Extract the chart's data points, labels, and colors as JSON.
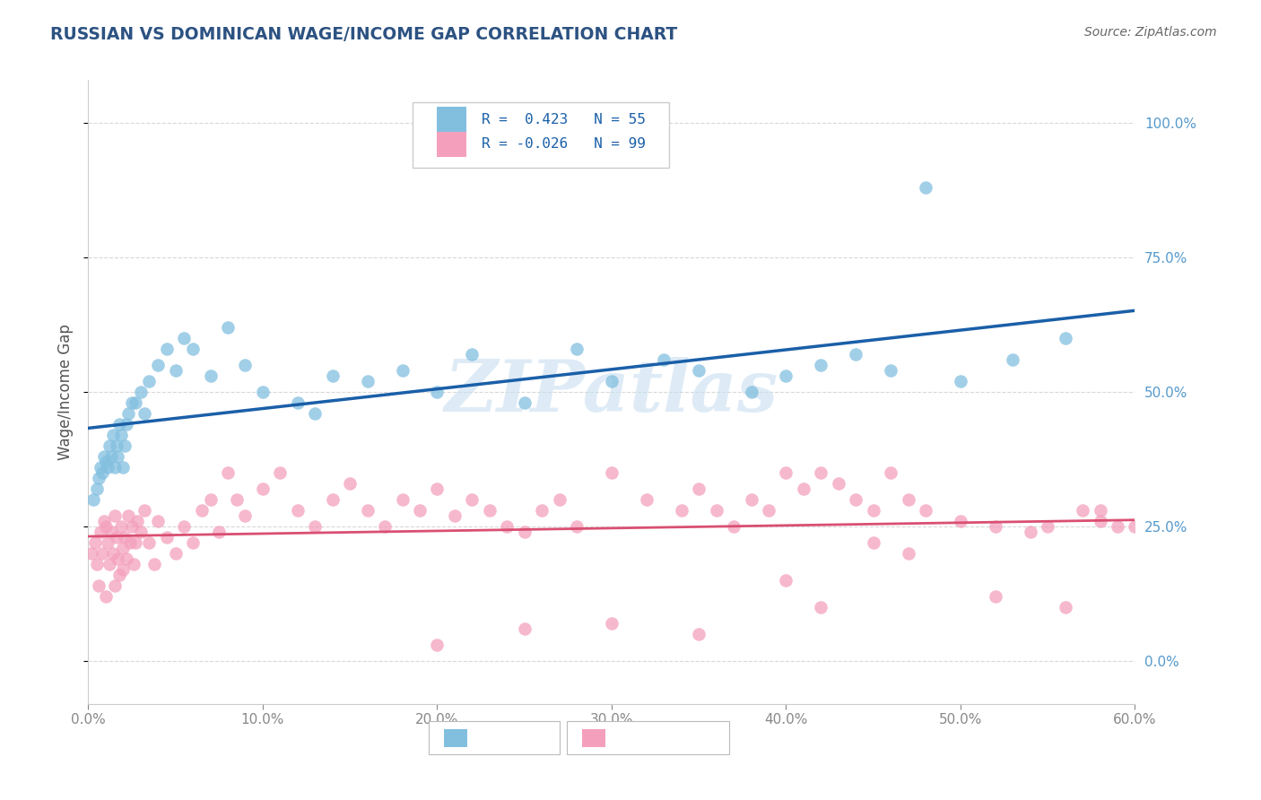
{
  "title": "RUSSIAN VS DOMINICAN WAGE/INCOME GAP CORRELATION CHART",
  "source": "Source: ZipAtlas.com",
  "ylabel": "Wage/Income Gap",
  "xlim": [
    0,
    60
  ],
  "ylim": [
    -8,
    108
  ],
  "xtick_vals": [
    0,
    10,
    20,
    30,
    40,
    50,
    60
  ],
  "ytick_vals": [
    0,
    25,
    50,
    75,
    100
  ],
  "legend_r_russian": "0.423",
  "legend_n_russian": "55",
  "legend_r_dominican": "-0.026",
  "legend_n_dominican": "99",
  "russian_color": "#82bfdf",
  "dominican_color": "#f4a0bc",
  "trend_russian_color": "#1a5fa8",
  "trend_dominican_color": "#d94f72",
  "watermark_color": "#c8dff0",
  "title_color": "#2c5282",
  "source_color": "#666666",
  "tick_color": "#888888",
  "right_tick_color": "#5599cc",
  "grid_color": "#d8d8d8",
  "legend_box_color": "#cccccc",
  "legend_text_color": "#1a5fa8",
  "bottom_legend_border": "#bbbbbb",
  "russians_x": [
    0.3,
    0.5,
    0.6,
    0.7,
    0.8,
    0.9,
    1.0,
    1.1,
    1.2,
    1.3,
    1.4,
    1.5,
    1.6,
    1.7,
    1.8,
    1.9,
    2.0,
    2.1,
    2.2,
    2.3,
    2.5,
    2.7,
    3.0,
    3.2,
    3.5,
    4.0,
    4.5,
    5.0,
    5.5,
    6.0,
    7.0,
    8.0,
    9.0,
    10.0,
    12.0,
    13.0,
    14.0,
    16.0,
    18.0,
    20.0,
    22.0,
    25.0,
    28.0,
    30.0,
    33.0,
    35.0,
    38.0,
    40.0,
    42.0,
    44.0,
    46.0,
    48.0,
    50.0,
    53.0,
    56.0
  ],
  "russians_y": [
    30,
    32,
    34,
    36,
    35,
    38,
    37,
    36,
    40,
    38,
    42,
    36,
    40,
    38,
    44,
    42,
    36,
    40,
    44,
    46,
    48,
    48,
    50,
    46,
    52,
    55,
    58,
    54,
    60,
    58,
    53,
    62,
    55,
    50,
    48,
    46,
    53,
    52,
    54,
    50,
    57,
    48,
    58,
    52,
    56,
    54,
    50,
    53,
    55,
    57,
    54,
    88,
    52,
    56,
    60
  ],
  "dominicans_x": [
    0.2,
    0.4,
    0.5,
    0.6,
    0.7,
    0.8,
    0.9,
    1.0,
    1.0,
    1.1,
    1.2,
    1.3,
    1.4,
    1.5,
    1.5,
    1.6,
    1.7,
    1.8,
    1.9,
    2.0,
    2.0,
    2.1,
    2.2,
    2.3,
    2.4,
    2.5,
    2.6,
    2.7,
    2.8,
    3.0,
    3.2,
    3.5,
    3.8,
    4.0,
    4.5,
    5.0,
    5.5,
    6.0,
    6.5,
    7.0,
    7.5,
    8.0,
    8.5,
    9.0,
    10.0,
    11.0,
    12.0,
    13.0,
    14.0,
    15.0,
    16.0,
    17.0,
    18.0,
    19.0,
    20.0,
    21.0,
    22.0,
    23.0,
    24.0,
    25.0,
    26.0,
    27.0,
    28.0,
    30.0,
    32.0,
    34.0,
    35.0,
    36.0,
    37.0,
    38.0,
    39.0,
    40.0,
    41.0,
    42.0,
    43.0,
    44.0,
    45.0,
    46.0,
    47.0,
    48.0,
    50.0,
    52.0,
    54.0,
    56.0,
    57.0,
    58.0,
    59.0,
    60.0,
    30.0,
    35.0,
    40.0,
    42.0,
    45.0,
    47.0,
    52.0,
    55.0,
    58.0,
    20.0,
    25.0
  ],
  "dominicans_y": [
    20,
    22,
    18,
    14,
    24,
    20,
    26,
    25,
    12,
    22,
    18,
    24,
    20,
    27,
    14,
    23,
    19,
    16,
    25,
    21,
    17,
    23,
    19,
    27,
    22,
    25,
    18,
    22,
    26,
    24,
    28,
    22,
    18,
    26,
    23,
    20,
    25,
    22,
    28,
    30,
    24,
    35,
    30,
    27,
    32,
    35,
    28,
    25,
    30,
    33,
    28,
    25,
    30,
    28,
    32,
    27,
    30,
    28,
    25,
    24,
    28,
    30,
    25,
    35,
    30,
    28,
    32,
    28,
    25,
    30,
    28,
    35,
    32,
    35,
    33,
    30,
    28,
    35,
    30,
    28,
    26,
    12,
    24,
    10,
    28,
    26,
    25,
    25,
    7,
    5,
    15,
    10,
    22,
    20,
    25,
    25,
    28,
    3,
    6
  ]
}
